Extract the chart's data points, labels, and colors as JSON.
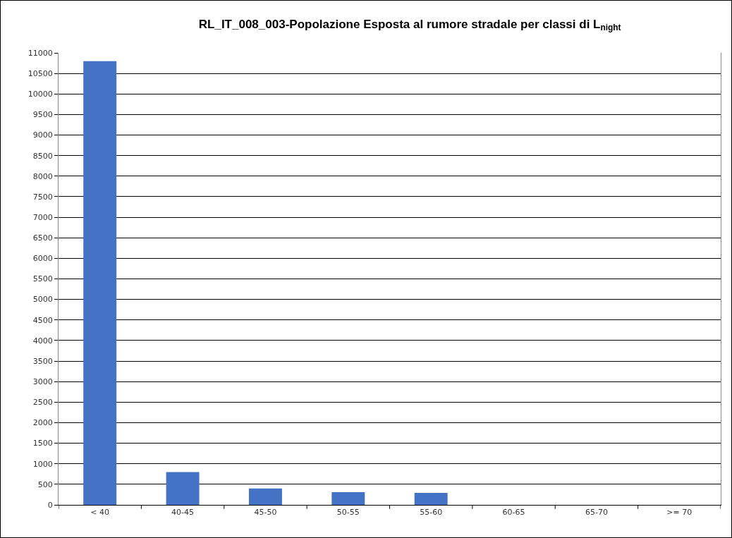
{
  "chart_data": {
    "type": "bar",
    "title": "RL_IT_008_003-Popolazione Esposta al rumore stradale per classi di L$_{night}$",
    "categories": [
      "< 40",
      "40-45",
      "45-50",
      "50-55",
      "55-60",
      "60-65",
      "65-70",
      ">= 70"
    ],
    "values": [
      10800,
      800,
      400,
      310,
      290,
      0,
      0,
      0
    ],
    "color": "#4472c4",
    "ylim": [
      0,
      11000
    ],
    "yticks": [
      0,
      500,
      1000,
      1500,
      2000,
      2500,
      3000,
      3500,
      4000,
      4500,
      5000,
      5500,
      6000,
      6500,
      7000,
      7500,
      8000,
      8500,
      9000,
      9500,
      10000,
      10500,
      11000
    ],
    "grid": "y",
    "legend": false
  }
}
